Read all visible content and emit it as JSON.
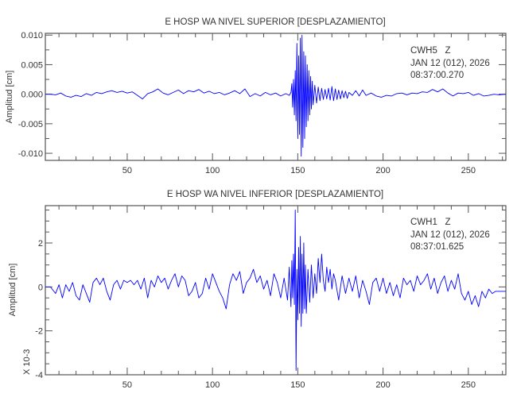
{
  "chart_data": [
    {
      "type": "line",
      "title": "E HOSP WA NIVEL SUPERIOR [DESPLAZAMIENTO]",
      "xlabel": "",
      "ylabel": "Amplitud [cm]",
      "xlim": [
        2,
        272
      ],
      "ylim": [
        -0.0112,
        0.0103
      ],
      "x_ticks": [
        50,
        100,
        150,
        200,
        250
      ],
      "y_ticks": [
        -0.01,
        -0.005,
        0.0,
        0.005,
        0.01
      ],
      "y_tick_labels": [
        "-0.010",
        "-0.005",
        "0.000",
        "0.005",
        "0.010"
      ],
      "annotation": [
        "CWH5   Z",
        "JAN 12 (012), 2026",
        "08:37:00.270"
      ],
      "grid": false,
      "color": "#0000ff",
      "points": [
        [
          2,
          0
        ],
        [
          5,
          0
        ],
        [
          8,
          -0.0001
        ],
        [
          11,
          0.0002
        ],
        [
          14,
          -0.0003
        ],
        [
          17,
          -0.0005
        ],
        [
          20,
          -0.0002
        ],
        [
          23,
          -0.0004
        ],
        [
          26,
          0.0001
        ],
        [
          29,
          -0.0002
        ],
        [
          32,
          0.0003
        ],
        [
          35,
          0.0001
        ],
        [
          38,
          0.0004
        ],
        [
          41,
          0.0006
        ],
        [
          44,
          0.0003
        ],
        [
          47,
          0.0005
        ],
        [
          50,
          0.0002
        ],
        [
          53,
          0.0004
        ],
        [
          56,
          -0.0002
        ],
        [
          59,
          -0.0008
        ],
        [
          62,
          0.0001
        ],
        [
          65,
          0.0004
        ],
        [
          68,
          0.0009
        ],
        [
          71,
          0.0002
        ],
        [
          74,
          -0.0001
        ],
        [
          77,
          0.0003
        ],
        [
          80,
          0.0007
        ],
        [
          83,
          0.0001
        ],
        [
          86,
          0.0006
        ],
        [
          89,
          0.0004
        ],
        [
          92,
          0.0008
        ],
        [
          95,
          0.0002
        ],
        [
          98,
          0.0005
        ],
        [
          101,
          0.0001
        ],
        [
          104,
          0.0003
        ],
        [
          107,
          -0.0001
        ],
        [
          110,
          0.0002
        ],
        [
          113,
          0.0006
        ],
        [
          116,
          0.0001
        ],
        [
          119,
          0.0009
        ],
        [
          122,
          -0.0004
        ],
        [
          125,
          0.0001
        ],
        [
          128,
          -0.0003
        ],
        [
          131,
          0.0003
        ],
        [
          134,
          -0.0001
        ],
        [
          137,
          0.0002
        ],
        [
          140,
          -0.0003
        ],
        [
          143,
          0.0001
        ],
        [
          145,
          -0.0002
        ],
        [
          146,
          0.0003
        ],
        [
          146.5,
          0.0018
        ],
        [
          147,
          -0.0022
        ],
        [
          147.5,
          0.0025
        ],
        [
          148,
          -0.0035
        ],
        [
          148.5,
          0.004
        ],
        [
          149,
          -0.0045
        ],
        [
          149.5,
          0.0086
        ],
        [
          150,
          -0.0075
        ],
        [
          150.5,
          0.0065
        ],
        [
          151,
          -0.0068
        ],
        [
          151.5,
          0.0095
        ],
        [
          152,
          -0.0105
        ],
        [
          152.5,
          0.01
        ],
        [
          153,
          -0.009
        ],
        [
          153.5,
          0.0072
        ],
        [
          154,
          -0.0075
        ],
        [
          154.5,
          0.0065
        ],
        [
          155,
          -0.0055
        ],
        [
          155.5,
          0.005
        ],
        [
          156,
          -0.0045
        ],
        [
          156.5,
          0.004
        ],
        [
          157,
          -0.0035
        ],
        [
          157.5,
          0.003
        ],
        [
          158,
          -0.0025
        ],
        [
          158.5,
          0.0022
        ],
        [
          159,
          -0.0018
        ],
        [
          160,
          0.0015
        ],
        [
          161,
          -0.0015
        ],
        [
          162,
          0.0012
        ],
        [
          163,
          -0.0011
        ],
        [
          164,
          0.001
        ],
        [
          165,
          -0.0009
        ],
        [
          166,
          0.0008
        ],
        [
          167,
          -0.0008
        ],
        [
          168,
          0.001
        ],
        [
          169,
          -0.001
        ],
        [
          170,
          0.0013
        ],
        [
          171,
          -0.0011
        ],
        [
          172,
          0.0009
        ],
        [
          173,
          -0.0009
        ],
        [
          174,
          0.0007
        ],
        [
          175,
          -0.0008
        ],
        [
          176,
          0.0006
        ],
        [
          177,
          -0.0006
        ],
        [
          178,
          0.0005
        ],
        [
          179,
          -0.0007
        ],
        [
          180,
          0.0003
        ],
        [
          182,
          -0.0002
        ],
        [
          184,
          0.0006
        ],
        [
          186,
          -0.0003
        ],
        [
          188,
          0.0007
        ],
        [
          190,
          -0.0002
        ],
        [
          193,
          0.0002
        ],
        [
          196,
          -0.0003
        ],
        [
          199,
          -0.0005
        ],
        [
          202,
          -0.0002
        ],
        [
          205,
          -0.0003
        ],
        [
          208,
          0.0001
        ],
        [
          211,
          0.0002
        ],
        [
          214,
          -0.0001
        ],
        [
          217,
          0.0002
        ],
        [
          220,
          0.0001
        ],
        [
          223,
          0.0004
        ],
        [
          226,
          0.0003
        ],
        [
          229,
          0.0008
        ],
        [
          232,
          0.0004
        ],
        [
          235,
          0.0009
        ],
        [
          238,
          0.0002
        ],
        [
          241,
          -0.0003
        ],
        [
          244,
          0.0002
        ],
        [
          247,
          0.0001
        ],
        [
          250,
          0.0003
        ],
        [
          253,
          -0.0002
        ],
        [
          256,
          0.0001
        ],
        [
          259,
          -0.0003
        ],
        [
          262,
          -0.0002
        ],
        [
          265,
          0
        ],
        [
          268,
          -0.0001
        ],
        [
          272,
          0
        ]
      ]
    },
    {
      "type": "line",
      "title": "E HOSP WA NIVEL INFERIOR [DESPLAZAMIENTO]",
      "xlabel": "",
      "ylabel": "Amplitud [cm]",
      "y_multiplier_label": "X 10-3",
      "xlim": [
        2,
        272
      ],
      "ylim": [
        -4,
        3.7
      ],
      "x_ticks": [
        50,
        100,
        150,
        200,
        250
      ],
      "y_ticks": [
        -4,
        -2,
        0,
        2
      ],
      "y_tick_labels": [
        "-4",
        "-2",
        "0",
        "2"
      ],
      "annotation": [
        "CWH1   Z",
        "JAN 12 (012), 2026",
        "08:37:01.625"
      ],
      "grid": false,
      "color": "#0000ff",
      "points": [
        [
          2,
          0
        ],
        [
          5,
          0
        ],
        [
          8,
          -0.3
        ],
        [
          10,
          0.1
        ],
        [
          12,
          -0.5
        ],
        [
          14,
          0.1
        ],
        [
          16,
          -0.2
        ],
        [
          18,
          0.2
        ],
        [
          20,
          -0.4
        ],
        [
          22,
          -0.6
        ],
        [
          24,
          0.1
        ],
        [
          26,
          -0.3
        ],
        [
          28,
          -0.7
        ],
        [
          30,
          0.2
        ],
        [
          32,
          0.4
        ],
        [
          34,
          0.1
        ],
        [
          36,
          0.4
        ],
        [
          38,
          -0.2
        ],
        [
          40,
          -0.6
        ],
        [
          42,
          0.1
        ],
        [
          44,
          0.3
        ],
        [
          46,
          -0.1
        ],
        [
          48,
          0.3
        ],
        [
          50,
          0.2
        ],
        [
          52,
          0.3
        ],
        [
          54,
          0.1
        ],
        [
          56,
          0.3
        ],
        [
          58,
          -0.1
        ],
        [
          60,
          0.4
        ],
        [
          62,
          -0.5
        ],
        [
          64,
          0.3
        ],
        [
          66,
          0
        ],
        [
          68,
          0.5
        ],
        [
          70,
          0.2
        ],
        [
          72,
          0.4
        ],
        [
          74,
          -0.1
        ],
        [
          76,
          0.3
        ],
        [
          78,
          0.6
        ],
        [
          80,
          0
        ],
        [
          82,
          0.5
        ],
        [
          84,
          0.3
        ],
        [
          86,
          -0.4
        ],
        [
          88,
          -0.2
        ],
        [
          90,
          0.2
        ],
        [
          92,
          -0.5
        ],
        [
          94,
          -0.3
        ],
        [
          96,
          0.4
        ],
        [
          98,
          -0.1
        ],
        [
          100,
          0.6
        ],
        [
          102,
          0.2
        ],
        [
          104,
          -0.2
        ],
        [
          106,
          -0.5
        ],
        [
          108,
          -1.0
        ],
        [
          110,
          0.1
        ],
        [
          112,
          0.6
        ],
        [
          114,
          0.3
        ],
        [
          116,
          0.7
        ],
        [
          118,
          -0.3
        ],
        [
          120,
          0.2
        ],
        [
          122,
          0.4
        ],
        [
          124,
          0.8
        ],
        [
          126,
          0.2
        ],
        [
          128,
          0.5
        ],
        [
          130,
          -0.1
        ],
        [
          132,
          0.3
        ],
        [
          134,
          -0.4
        ],
        [
          136,
          0.6
        ],
        [
          138,
          0.2
        ],
        [
          140,
          -0.5
        ],
        [
          142,
          0.4
        ],
        [
          144,
          -0.6
        ],
        [
          145,
          0.9
        ],
        [
          146,
          -0.9
        ],
        [
          146.5,
          1.2
        ],
        [
          147,
          -0.5
        ],
        [
          147.5,
          1.5
        ],
        [
          148,
          -0.8
        ],
        [
          148.5,
          3.5
        ],
        [
          149,
          -3.8
        ],
        [
          149.5,
          0.8
        ],
        [
          150,
          -1.5
        ],
        [
          150.5,
          1.8
        ],
        [
          151,
          -1.2
        ],
        [
          151.5,
          2.3
        ],
        [
          152,
          -1.8
        ],
        [
          152.5,
          1.5
        ],
        [
          153,
          -1.2
        ],
        [
          153.5,
          2.0
        ],
        [
          154,
          -1.0
        ],
        [
          154.5,
          1.0
        ],
        [
          155,
          -1.2
        ],
        [
          156,
          0.8
        ],
        [
          157,
          -0.7
        ],
        [
          158,
          1.0
        ],
        [
          159,
          -0.5
        ],
        [
          160,
          0.6
        ],
        [
          161,
          -0.3
        ],
        [
          162,
          1.3
        ],
        [
          163,
          0.2
        ],
        [
          164,
          1.5
        ],
        [
          165,
          0.3
        ],
        [
          166,
          -0.2
        ],
        [
          167,
          0.9
        ],
        [
          168,
          0.2
        ],
        [
          169,
          0.8
        ],
        [
          170,
          -0.1
        ],
        [
          171,
          0.6
        ],
        [
          172,
          0.3
        ],
        [
          174,
          -0.6
        ],
        [
          176,
          0.5
        ],
        [
          178,
          -0.3
        ],
        [
          180,
          0.4
        ],
        [
          182,
          -0.2
        ],
        [
          184,
          0.5
        ],
        [
          186,
          -0.5
        ],
        [
          188,
          0.3
        ],
        [
          190,
          -0.2
        ],
        [
          192,
          -0.8
        ],
        [
          194,
          0.2
        ],
        [
          196,
          0.4
        ],
        [
          198,
          -0.2
        ],
        [
          200,
          0.4
        ],
        [
          202,
          -0.3
        ],
        [
          204,
          0.2
        ],
        [
          206,
          -0.4
        ],
        [
          208,
          0.1
        ],
        [
          210,
          -0.5
        ],
        [
          212,
          0.4
        ],
        [
          214,
          0.1
        ],
        [
          216,
          0.3
        ],
        [
          218,
          -0.2
        ],
        [
          220,
          0.5
        ],
        [
          222,
          0.1
        ],
        [
          224,
          0.3
        ],
        [
          226,
          0.6
        ],
        [
          228,
          -0.1
        ],
        [
          230,
          0.4
        ],
        [
          232,
          -0.3
        ],
        [
          234,
          0.2
        ],
        [
          236,
          0.5
        ],
        [
          238,
          -0.2
        ],
        [
          240,
          0.3
        ],
        [
          242,
          -0.1
        ],
        [
          244,
          0.6
        ],
        [
          246,
          -0.3
        ],
        [
          248,
          -0.6
        ],
        [
          250,
          -0.2
        ],
        [
          252,
          -0.8
        ],
        [
          254,
          -0.4
        ],
        [
          256,
          -0.9
        ],
        [
          258,
          -0.2
        ],
        [
          260,
          -0.5
        ],
        [
          262,
          -0.1
        ],
        [
          264,
          -0.3
        ],
        [
          266,
          -0.2
        ],
        [
          268,
          -0.2
        ],
        [
          272,
          -0.2
        ]
      ]
    }
  ]
}
